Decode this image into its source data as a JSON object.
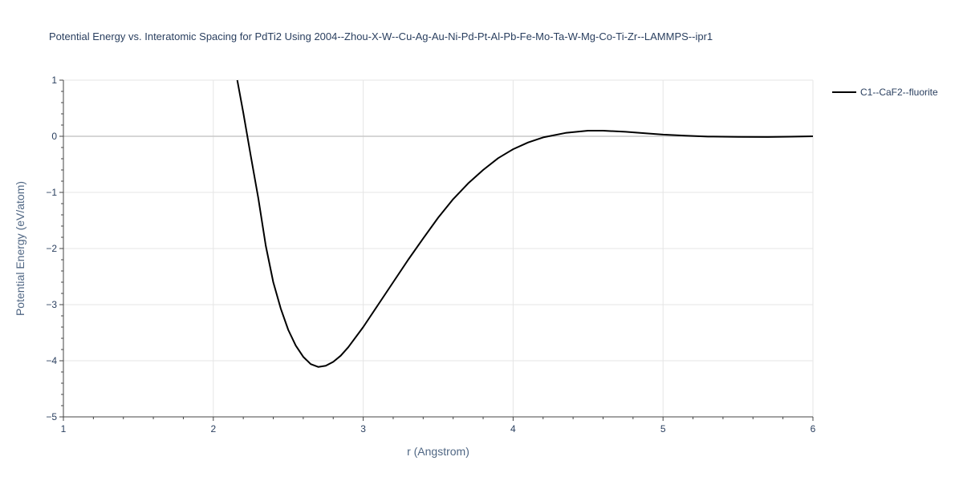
{
  "chart_data": {
    "type": "line",
    "title": "Potential Energy vs. Interatomic Spacing for PdTi2 Using 2004--Zhou-X-W--Cu-Ag-Au-Ni-Pd-Pt-Al-Pb-Fe-Mo-Ta-W-Mg-Co-Ti-Zr--LAMMPS--ipr1",
    "xlabel": "r (Angstrom)",
    "ylabel": "Potential Energy (eV/atom)",
    "xlim": [
      1,
      6
    ],
    "ylim": [
      -5,
      1
    ],
    "xticks": [
      1,
      2,
      3,
      4,
      5,
      6
    ],
    "yticks": [
      -5,
      -4,
      -3,
      -2,
      -1,
      0,
      1
    ],
    "ytick_labels": [
      "−5",
      "−4",
      "−3",
      "−2",
      "−1",
      "0",
      "1"
    ],
    "grid": true,
    "legend_position": "top-right",
    "series": [
      {
        "name": "C1--CaF2--fluorite",
        "color": "#000000",
        "x": [
          2.16,
          2.2,
          2.25,
          2.3,
          2.35,
          2.4,
          2.45,
          2.5,
          2.55,
          2.6,
          2.65,
          2.7,
          2.75,
          2.8,
          2.85,
          2.9,
          3.0,
          3.1,
          3.2,
          3.3,
          3.4,
          3.5,
          3.6,
          3.7,
          3.8,
          3.9,
          4.0,
          4.1,
          4.2,
          4.35,
          4.5,
          4.6,
          4.75,
          4.9,
          5.0,
          5.15,
          5.3,
          5.5,
          5.7,
          5.85,
          6.0
        ],
        "y": [
          1.0,
          0.42,
          -0.35,
          -1.1,
          -1.95,
          -2.6,
          -3.07,
          -3.45,
          -3.73,
          -3.93,
          -4.06,
          -4.11,
          -4.09,
          -4.02,
          -3.91,
          -3.76,
          -3.4,
          -3.0,
          -2.6,
          -2.2,
          -1.82,
          -1.45,
          -1.12,
          -0.84,
          -0.6,
          -0.39,
          -0.23,
          -0.11,
          -0.02,
          0.06,
          0.1,
          0.1,
          0.08,
          0.05,
          0.03,
          0.01,
          -0.005,
          -0.01,
          -0.012,
          -0.008,
          0.0
        ]
      }
    ]
  }
}
